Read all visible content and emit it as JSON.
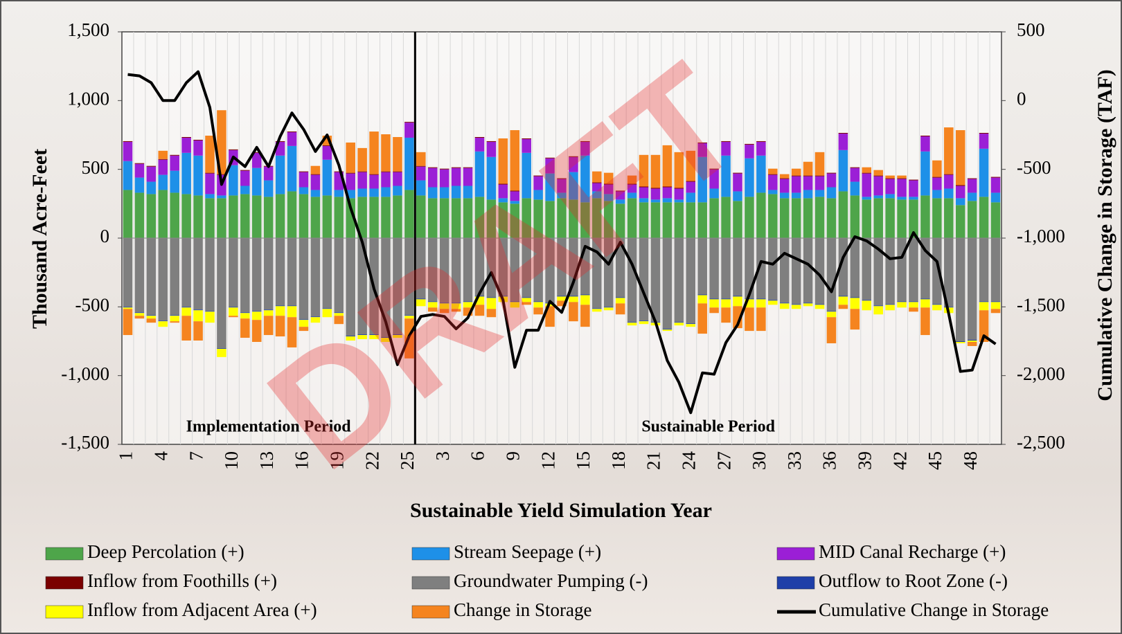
{
  "chart_data": {
    "type": "bar",
    "xlabel": "Sustainable Yield Simulation Year",
    "ylabel": "Thousand Acre-Feet",
    "y2label": "Cumulative Change in Storage (TAF)",
    "annotations": [
      "Implementation Period",
      "Sustainable Period"
    ],
    "watermark": "DRAFT",
    "categories": [
      "1",
      null,
      null,
      "4",
      null,
      null,
      "7",
      null,
      null,
      "10",
      null,
      null,
      "13",
      null,
      null,
      "16",
      null,
      null,
      "19",
      null,
      null,
      "22",
      null,
      null,
      "25",
      null,
      null,
      "3",
      null,
      null,
      "6",
      null,
      null,
      "9",
      null,
      null,
      "12",
      null,
      null,
      "15",
      null,
      null,
      "18",
      null,
      null,
      "21",
      null,
      null,
      "24",
      null,
      null,
      "27",
      null,
      null,
      "30",
      null,
      null,
      "33",
      null,
      null,
      "36",
      null,
      null,
      "39",
      null,
      null,
      "42",
      null,
      null,
      "45",
      null,
      null,
      "48",
      null,
      null
    ],
    "ylim": [
      -1500,
      1500
    ],
    "yticks": [
      {
        "value": -1500,
        "label": "-1,500"
      },
      {
        "value": -1000,
        "label": "-1,000"
      },
      -500,
      0,
      500,
      {
        "value": 1000,
        "label": "1,000"
      },
      {
        "value": 1500,
        "label": "1,500"
      }
    ],
    "y2lim": [
      -2500,
      500
    ],
    "y2ticks": [
      {
        "value": -2500,
        "label": "-2,500"
      },
      {
        "value": -2000,
        "label": "-2,000"
      },
      {
        "value": -1500,
        "label": "-1,500"
      },
      {
        "value": -1000,
        "label": "-1,000"
      },
      -500,
      0,
      500
    ],
    "series": [
      {
        "name": "Deep Percolation (+)",
        "color": "#4ea54a",
        "values": [
          350,
          330,
          320,
          350,
          330,
          320,
          310,
          290,
          290,
          310,
          320,
          310,
          300,
          320,
          340,
          320,
          300,
          310,
          300,
          290,
          300,
          300,
          300,
          310,
          350,
          310,
          290,
          290,
          290,
          290,
          300,
          280,
          260,
          250,
          290,
          280,
          270,
          290,
          280,
          260,
          290,
          270,
          250,
          290,
          260,
          260,
          260,
          260,
          260,
          260,
          290,
          300,
          270,
          300,
          330,
          320,
          290,
          290,
          290,
          300,
          290,
          340,
          310,
          280,
          290,
          290,
          280,
          280,
          310,
          290,
          290,
          240,
          270,
          300,
          260
        ]
      },
      {
        "name": "Stream Seepage (+)",
        "color": "#1e90e8",
        "values": [
          210,
          110,
          90,
          110,
          160,
          300,
          290,
          30,
          20,
          220,
          60,
          200,
          120,
          280,
          330,
          50,
          50,
          260,
          50,
          60,
          60,
          60,
          70,
          70,
          380,
          110,
          80,
          80,
          90,
          90,
          330,
          310,
          30,
          20,
          330,
          70,
          200,
          40,
          200,
          340,
          50,
          50,
          30,
          40,
          30,
          20,
          30,
          20,
          70,
          330,
          70,
          300,
          70,
          280,
          270,
          30,
          40,
          40,
          60,
          50,
          80,
          300,
          100,
          20,
          20,
          30,
          20,
          20,
          320,
          60,
          70,
          50,
          60,
          350,
          70
        ]
      },
      {
        "name": "MID Canal Recharge (+)",
        "color": "#9b1fd6",
        "values": [
          140,
          100,
          110,
          110,
          110,
          110,
          110,
          150,
          150,
          110,
          110,
          110,
          100,
          100,
          100,
          110,
          110,
          100,
          130,
          120,
          120,
          100,
          110,
          100,
          110,
          100,
          140,
          130,
          130,
          130,
          100,
          110,
          100,
          70,
          100,
          100,
          110,
          100,
          110,
          100,
          60,
          70,
          60,
          60,
          80,
          80,
          80,
          80,
          80,
          100,
          140,
          100,
          130,
          100,
          100,
          110,
          100,
          120,
          100,
          100,
          100,
          120,
          100,
          170,
          140,
          110,
          130,
          120,
          110,
          90,
          100,
          90,
          100,
          110,
          110
        ]
      },
      {
        "name": "Inflow from Foothills (+)",
        "color": "#7a0000",
        "values": [
          5,
          5,
          5,
          5,
          5,
          5,
          5,
          5,
          5,
          5,
          5,
          5,
          5,
          5,
          5,
          5,
          5,
          5,
          5,
          5,
          5,
          5,
          5,
          5,
          5,
          5,
          5,
          5,
          5,
          5,
          5,
          5,
          5,
          5,
          5,
          5,
          5,
          5,
          5,
          5,
          5,
          5,
          5,
          5,
          5,
          5,
          5,
          5,
          5,
          5,
          5,
          5,
          5,
          5,
          5,
          5,
          5,
          5,
          5,
          5,
          5,
          5,
          5,
          5,
          5,
          5,
          5,
          5,
          5,
          5,
          5,
          5,
          5,
          5,
          5
        ]
      },
      {
        "name": "Groundwater Pumping (-)",
        "color": "#7f7f7f",
        "values": [
          -500,
          -540,
          -560,
          -600,
          -560,
          -500,
          -520,
          -530,
          -800,
          -500,
          -540,
          -530,
          -520,
          -490,
          -490,
          -590,
          -570,
          -510,
          -540,
          -710,
          -700,
          -700,
          -720,
          -700,
          -560,
          -440,
          -460,
          -470,
          -470,
          -460,
          -420,
          -430,
          -420,
          -460,
          -430,
          -460,
          -470,
          -420,
          -420,
          -410,
          -510,
          -500,
          -430,
          -610,
          -600,
          -610,
          -660,
          -610,
          -620,
          -410,
          -440,
          -440,
          -420,
          -440,
          -440,
          -450,
          -470,
          -480,
          -470,
          -480,
          -530,
          -420,
          -430,
          -450,
          -490,
          -480,
          -460,
          -460,
          -440,
          -480,
          -500,
          -750,
          -740,
          -460,
          -460
        ]
      },
      {
        "name": "Outflow to Root Zone (-)",
        "color": "#1f3fa8",
        "values": [
          -5,
          -5,
          -5,
          -5,
          -5,
          -5,
          -5,
          -5,
          -5,
          -5,
          -5,
          -5,
          -5,
          -5,
          -5,
          -5,
          -5,
          -5,
          -5,
          -5,
          -5,
          -5,
          -5,
          -5,
          -5,
          -5,
          -5,
          -5,
          -5,
          -5,
          -5,
          -5,
          -5,
          -5,
          -5,
          -5,
          -5,
          -5,
          -5,
          -5,
          -5,
          -5,
          -5,
          -5,
          -5,
          -5,
          -5,
          -5,
          -5,
          -5,
          -5,
          -5,
          -5,
          -5,
          -5,
          -5,
          -5,
          -5,
          -5,
          -5,
          -5,
          -5,
          -5,
          -5,
          -5,
          -5,
          -5,
          -5,
          -5,
          -5,
          -5,
          -5,
          -5,
          -5,
          -5
        ]
      },
      {
        "name": "Inflow from Adjacent Area (+)",
        "color": "#ffff00",
        "values": [
          -10,
          -20,
          -20,
          -40,
          -40,
          -60,
          -80,
          -80,
          -60,
          -60,
          -40,
          -60,
          -40,
          -70,
          -80,
          -50,
          -40,
          -60,
          -20,
          -30,
          -30,
          -30,
          -30,
          -20,
          -20,
          -50,
          -40,
          -40,
          -40,
          -40,
          -60,
          -80,
          -40,
          -40,
          -30,
          -40,
          -20,
          -30,
          -40,
          -70,
          -20,
          -20,
          -40,
          -20,
          -20,
          -20,
          -10,
          -20,
          -20,
          -60,
          -60,
          -60,
          -70,
          -60,
          -60,
          -30,
          -40,
          -30,
          -20,
          -30,
          -40,
          -60,
          -80,
          -70,
          -60,
          -40,
          -40,
          -40,
          -60,
          -40,
          -40,
          -10,
          -10,
          -60,
          -50
        ]
      },
      {
        "name": "Change in Storage",
        "color": "#f5841f",
        "values": [
          -190,
          -20,
          -30,
          60,
          -10,
          -180,
          -140,
          270,
          465,
          -10,
          -140,
          -160,
          -140,
          -150,
          -220,
          -30,
          60,
          70,
          -60,
          220,
          170,
          310,
          270,
          250,
          -290,
          100,
          -30,
          -30,
          -20,
          -60,
          -80,
          -60,
          330,
          440,
          -20,
          -50,
          -150,
          -40,
          -140,
          -160,
          80,
          80,
          -80,
          60,
          230,
          240,
          300,
          260,
          220,
          -220,
          -40,
          -110,
          -160,
          -170,
          -170,
          40,
          30,
          50,
          100,
          170,
          -190,
          -30,
          -150,
          40,
          40,
          20,
          20,
          -30,
          -200,
          120,
          340,
          400,
          -30,
          -230,
          -30
        ]
      },
      {
        "name": "Cumulative Change in Storage",
        "color": "#000000",
        "type": "line",
        "axis": "y2",
        "values": [
          190,
          180,
          130,
          0,
          0,
          130,
          210,
          -50,
          -610,
          -410,
          -480,
          -340,
          -480,
          -260,
          -90,
          -210,
          -370,
          -250,
          -470,
          -780,
          -1030,
          -1370,
          -1610,
          -1920,
          -1710,
          -1570,
          -1555,
          -1570,
          -1660,
          -1580,
          -1400,
          -1250,
          -1450,
          -1940,
          -1670,
          -1670,
          -1460,
          -1540,
          -1320,
          -1060,
          -1100,
          -1190,
          -1030,
          -1190,
          -1400,
          -1610,
          -1890,
          -2050,
          -2270,
          -1980,
          -1990,
          -1760,
          -1630,
          -1410,
          -1170,
          -1190,
          -1110,
          -1150,
          -1190,
          -1270,
          -1390,
          -1140,
          -990,
          -1020,
          -1080,
          -1150,
          -1140,
          -960,
          -1090,
          -1170,
          -1550,
          -1970,
          -1960,
          -1710,
          -1770
        ]
      }
    ]
  }
}
